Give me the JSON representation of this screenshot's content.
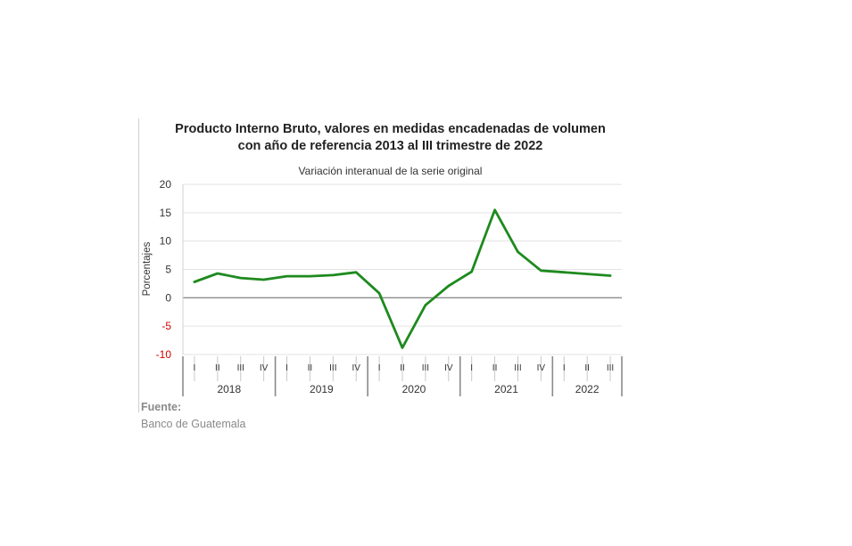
{
  "chart_data": {
    "type": "line",
    "title_line1": "Producto Interno Bruto, valores en medidas encadenadas de volumen",
    "title_line2": "con año de referencia 2013 al III trimestre de 2022",
    "subtitle": "Variación interanual de la serie original",
    "ylabel": "Porcentajes",
    "ylim": [
      -10,
      20
    ],
    "yticks": [
      "20",
      "15",
      "10",
      "5",
      "0",
      "-5",
      "-10"
    ],
    "quarters": [
      "I",
      "II",
      "III",
      "IV",
      "I",
      "II",
      "III",
      "IV",
      "I",
      "II",
      "III",
      "IV",
      "I",
      "II",
      "III",
      "IV",
      "I",
      "II",
      "III"
    ],
    "years": [
      {
        "label": "2018",
        "count": 4
      },
      {
        "label": "2019",
        "count": 4
      },
      {
        "label": "2020",
        "count": 4
      },
      {
        "label": "2021",
        "count": 4
      },
      {
        "label": "2022",
        "count": 3
      }
    ],
    "series": [
      {
        "values": [
          2.8,
          4.3,
          3.5,
          3.2,
          3.8,
          3.8,
          4.0,
          4.5,
          0.8,
          -8.8,
          -1.3,
          2.1,
          4.6,
          15.5,
          8.1,
          4.8,
          4.5,
          4.2,
          3.9
        ],
        "color": "#1e8a1e"
      }
    ],
    "grid": true,
    "negative_tick_color": "#cc0000",
    "zero_line_color": "#8c8c8c"
  },
  "source": {
    "label": "Fuente:",
    "text": "Banco de Guatemala"
  }
}
